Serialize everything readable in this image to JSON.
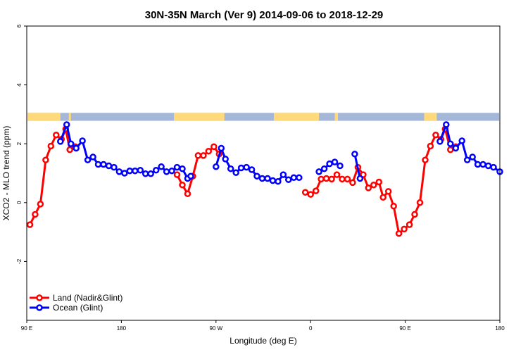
{
  "chart_data": {
    "type": "line",
    "title": "30N-35N March (Ver 9)   2014-09-06 to 2018-12-29",
    "xlabel": "Longitude (deg E)",
    "ylabel": "XCO2 - MLO trend (ppm)",
    "xlim": [
      90,
      540
    ],
    "ylim": [
      -4,
      6
    ],
    "x_ticks": [
      {
        "value": 90,
        "label": "90 E"
      },
      {
        "value": 180,
        "label": "180"
      },
      {
        "value": 270,
        "label": "90 W"
      },
      {
        "value": 360,
        "label": "0"
      },
      {
        "value": 450,
        "label": "90 E"
      },
      {
        "value": 540,
        "label": "180"
      }
    ],
    "y_ticks": [
      {
        "value": -2,
        "label": "-2"
      },
      {
        "value": 0,
        "label": "0"
      },
      {
        "value": 2,
        "label": "2"
      },
      {
        "value": 4,
        "label": "4"
      },
      {
        "value": 6,
        "label": "6"
      }
    ],
    "grid": false,
    "legend_position": "bottom-left",
    "colors": {
      "land": "#ff0000",
      "ocean": "#0000ff",
      "land_mask": "#ffd97a",
      "ocean_mask": "#a4b7d8"
    },
    "land_mask_segments": [
      [
        90,
        122
      ],
      [
        130,
        132
      ],
      [
        230,
        278
      ],
      [
        325,
        368
      ],
      [
        383,
        386
      ],
      [
        468,
        480
      ]
    ],
    "series": [
      {
        "name": "Land (Nadir&Glint)",
        "color": "#ff0000",
        "segments": [
          [
            [
              93,
              -0.75
            ],
            [
              98,
              -0.4
            ],
            [
              103,
              -0.05
            ],
            [
              108,
              1.45
            ],
            [
              113,
              1.92
            ],
            [
              118,
              2.3
            ],
            [
              123,
              2.15
            ],
            [
              127,
              2.5
            ],
            [
              131,
              1.8
            ],
            [
              136,
              1.9
            ]
          ],
          [
            [
              233,
              0.95
            ],
            [
              238,
              0.6
            ],
            [
              243,
              0.3
            ],
            [
              248,
              0.9
            ],
            [
              253,
              1.6
            ],
            [
              258,
              1.6
            ],
            [
              263,
              1.75
            ],
            [
              268,
              1.9
            ],
            [
              273,
              1.65
            ]
          ],
          [
            [
              355,
              0.35
            ],
            [
              360,
              0.28
            ],
            [
              365,
              0.4
            ],
            [
              370,
              0.8
            ],
            [
              375,
              0.82
            ],
            [
              380,
              0.8
            ],
            [
              385,
              0.95
            ],
            [
              390,
              0.8
            ],
            [
              395,
              0.8
            ],
            [
              400,
              0.68
            ],
            [
              405,
              1.2
            ],
            [
              410,
              0.95
            ],
            [
              415,
              0.5
            ],
            [
              420,
              0.6
            ],
            [
              425,
              0.7
            ],
            [
              429,
              0.18
            ],
            [
              434,
              0.38
            ],
            [
              439,
              -0.12
            ],
            [
              444,
              -1.05
            ],
            [
              449,
              -0.9
            ],
            [
              454,
              -0.75
            ],
            [
              459,
              -0.4
            ],
            [
              464,
              0.0
            ],
            [
              469,
              1.45
            ],
            [
              474,
              1.92
            ],
            [
              479,
              2.3
            ],
            [
              484,
              2.15
            ],
            [
              488,
              2.5
            ],
            [
              493,
              1.8
            ],
            [
              498,
              1.9
            ]
          ]
        ]
      },
      {
        "name": "Ocean (Glint)",
        "color": "#0000ff",
        "segments": [
          [
            [
              122,
              2.08
            ],
            [
              128,
              2.65
            ],
            [
              132,
              2.0
            ],
            [
              137,
              1.85
            ],
            [
              143,
              2.1
            ],
            [
              148,
              1.45
            ],
            [
              153,
              1.55
            ],
            [
              158,
              1.3
            ],
            [
              163,
              1.3
            ],
            [
              168,
              1.25
            ],
            [
              173,
              1.2
            ],
            [
              178,
              1.05
            ],
            [
              183,
              1.0
            ],
            [
              188,
              1.08
            ],
            [
              193,
              1.08
            ],
            [
              198,
              1.1
            ],
            [
              203,
              0.98
            ],
            [
              208,
              0.98
            ],
            [
              213,
              1.1
            ],
            [
              218,
              1.22
            ],
            [
              223,
              1.05
            ],
            [
              228,
              1.08
            ],
            [
              233,
              1.2
            ],
            [
              238,
              1.15
            ],
            [
              243,
              0.82
            ],
            [
              246,
              0.9
            ]
          ],
          [
            [
              270,
              1.22
            ],
            [
              275,
              1.85
            ],
            [
              279,
              1.48
            ],
            [
              284,
              1.15
            ],
            [
              289,
              1.02
            ],
            [
              294,
              1.18
            ],
            [
              299,
              1.2
            ],
            [
              304,
              1.12
            ],
            [
              309,
              0.9
            ],
            [
              314,
              0.82
            ],
            [
              319,
              0.82
            ],
            [
              324,
              0.75
            ],
            [
              329,
              0.72
            ],
            [
              334,
              0.95
            ],
            [
              339,
              0.78
            ],
            [
              344,
              0.85
            ],
            [
              349,
              0.85
            ]
          ],
          [
            [
              368,
              1.05
            ],
            [
              373,
              1.15
            ],
            [
              378,
              1.32
            ],
            [
              383,
              1.38
            ],
            [
              388,
              1.25
            ]
          ],
          [
            [
              402,
              1.65
            ],
            [
              407,
              0.82
            ]
          ],
          [
            [
              483,
              2.08
            ],
            [
              489,
              2.65
            ],
            [
              493,
              2.0
            ],
            [
              498,
              1.85
            ],
            [
              504,
              2.1
            ],
            [
              509,
              1.45
            ],
            [
              514,
              1.55
            ],
            [
              519,
              1.3
            ],
            [
              524,
              1.3
            ],
            [
              529,
              1.25
            ],
            [
              534,
              1.2
            ],
            [
              540,
              1.05
            ]
          ]
        ]
      }
    ]
  }
}
